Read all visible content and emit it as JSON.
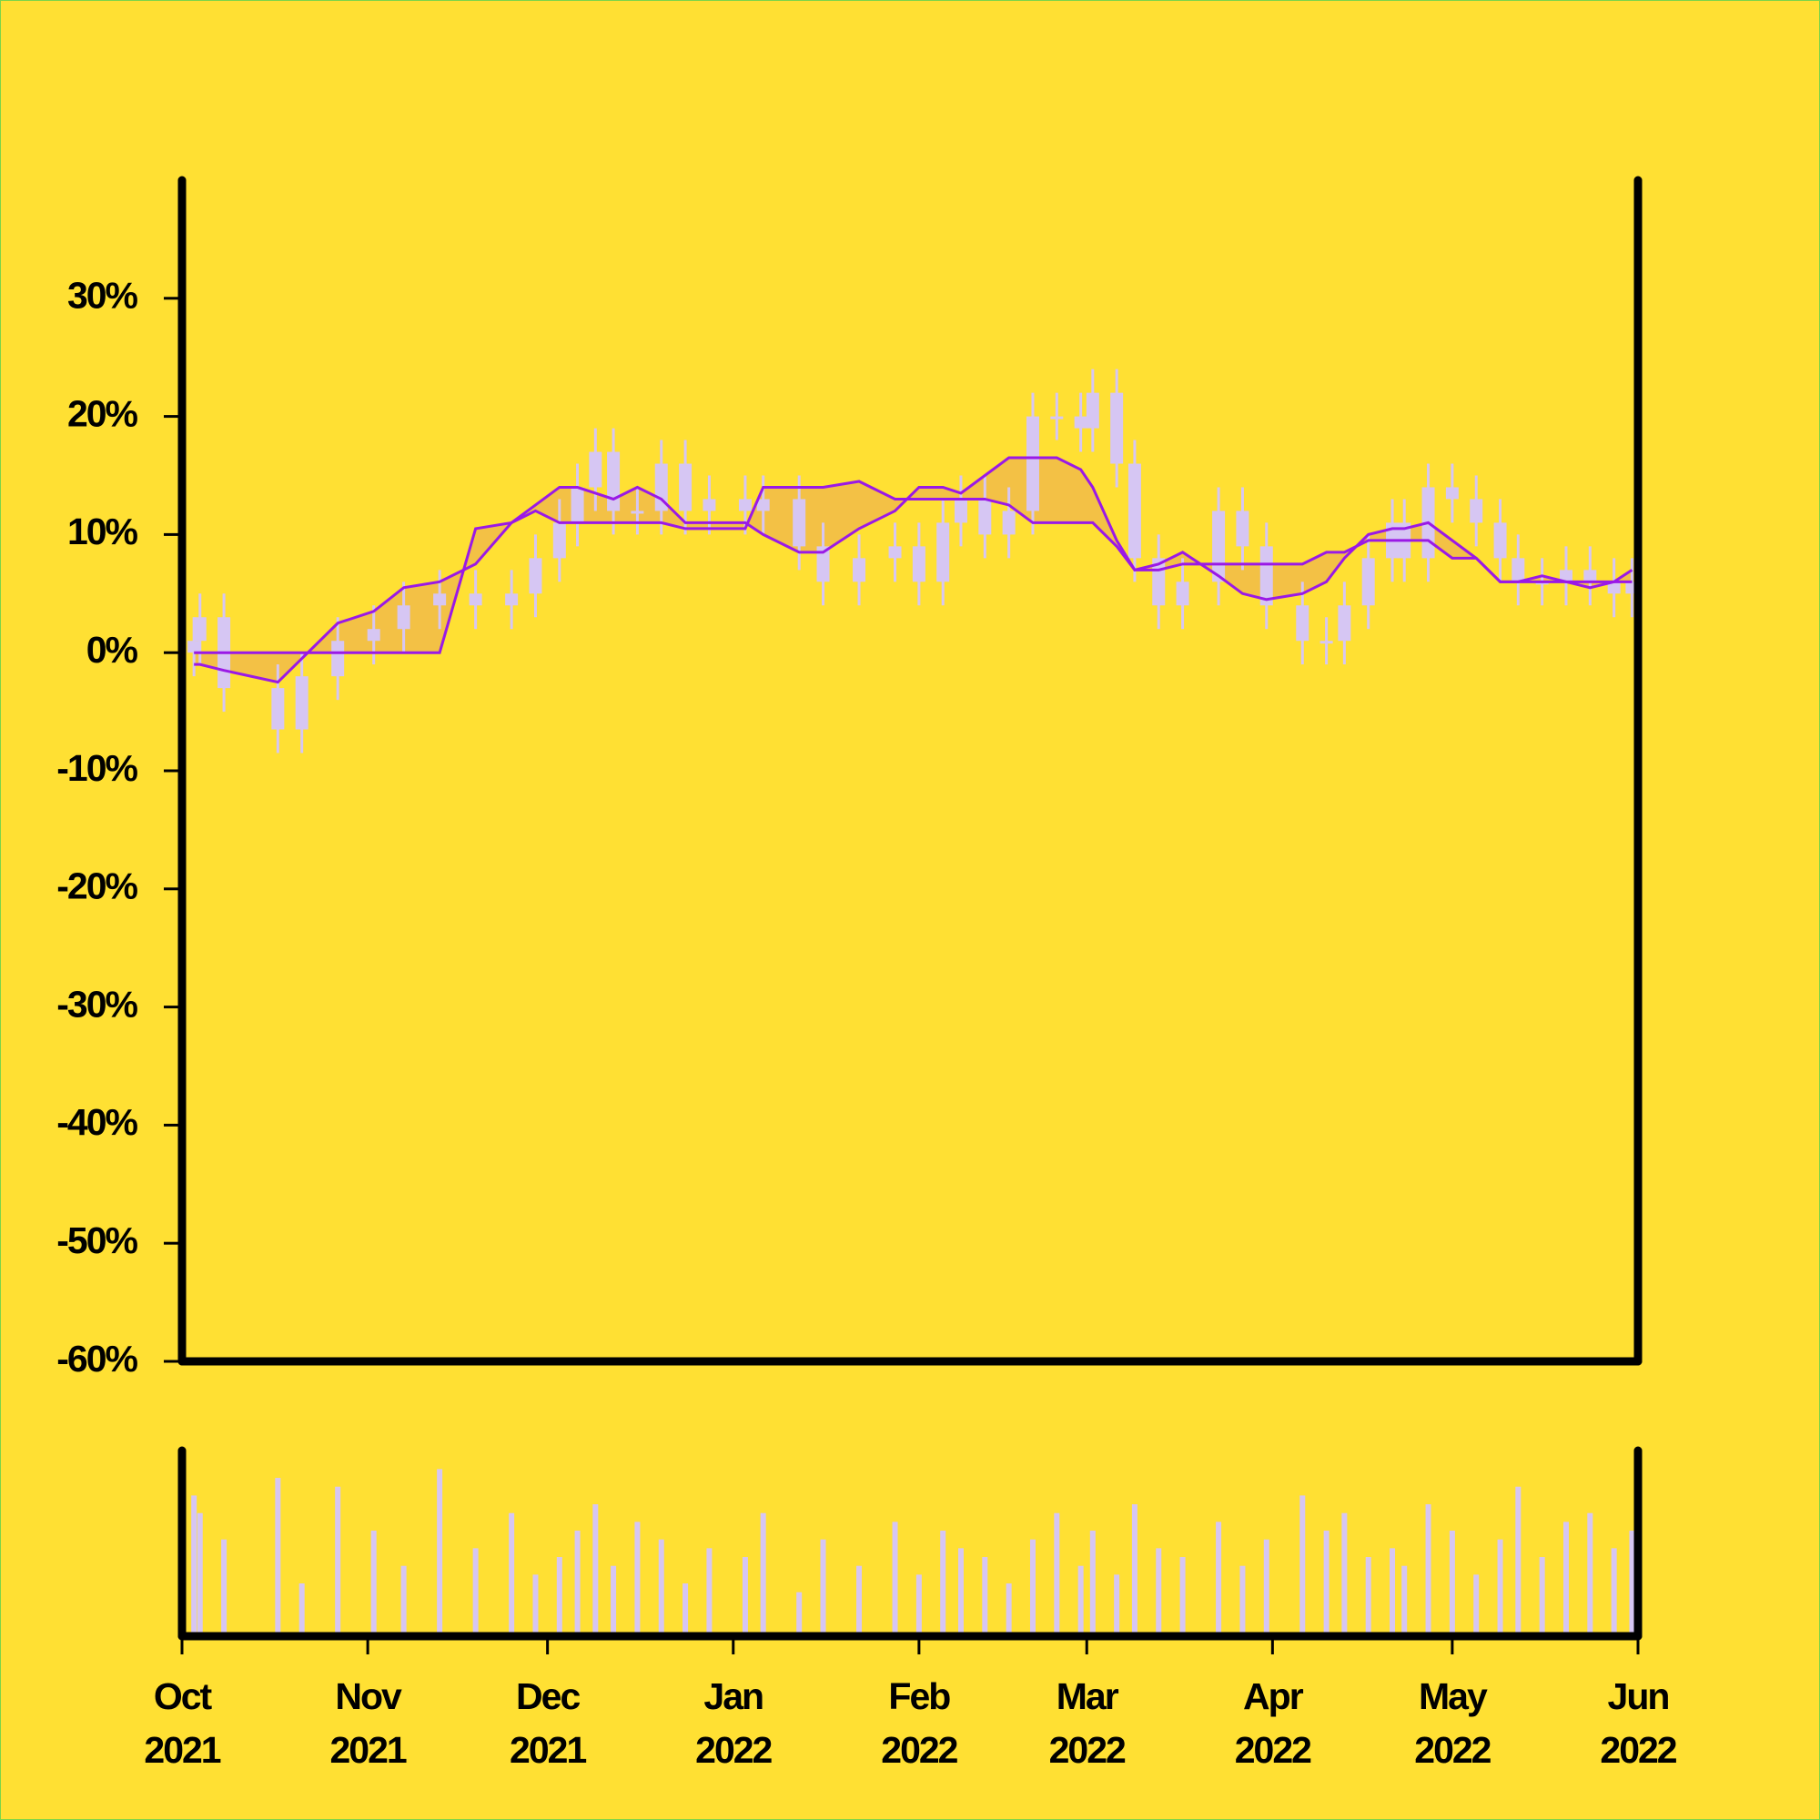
{
  "chart_data": {
    "type": "candlestick",
    "x": [
      2,
      3,
      7,
      16,
      20,
      26,
      32,
      37,
      43,
      49,
      55,
      59,
      63,
      66,
      69,
      72,
      76,
      80,
      84,
      88,
      94,
      97,
      103,
      107,
      113,
      119,
      123,
      127,
      130,
      134,
      138,
      142,
      146,
      150,
      152,
      156,
      159,
      163,
      167,
      173,
      177,
      181,
      187,
      191,
      194,
      198,
      202,
      204,
      208,
      212,
      216,
      220,
      223,
      227,
      231,
      235,
      239,
      242
    ],
    "open": [
      0,
      1,
      3,
      -3,
      -6.5,
      -2,
      1,
      2,
      4,
      5,
      4,
      5,
      8,
      11,
      14,
      17,
      12,
      12,
      16,
      12,
      13,
      12,
      13,
      9,
      6,
      8,
      9,
      6,
      11,
      13,
      10,
      12,
      20,
      20,
      19,
      22,
      16,
      8,
      4,
      6,
      12,
      9,
      4,
      1,
      1,
      4,
      8,
      11,
      8,
      14,
      13,
      11,
      8,
      6,
      6,
      7,
      6,
      5
    ],
    "high": [
      3,
      5,
      5,
      -1,
      0,
      3,
      4,
      6,
      7,
      7,
      7,
      10,
      13,
      16,
      19,
      19,
      14,
      18,
      18,
      15,
      15,
      15,
      15,
      11,
      10,
      11,
      11,
      13,
      15,
      15,
      14,
      22,
      22,
      22,
      24,
      24,
      18,
      10,
      8,
      14,
      14,
      11,
      6,
      3,
      6,
      10,
      13,
      13,
      16,
      16,
      15,
      13,
      10,
      8,
      9,
      9,
      8,
      8
    ],
    "low": [
      -2,
      -1,
      -5,
      -8.5,
      -8.5,
      -4,
      -1,
      0,
      2,
      2,
      2,
      3,
      6,
      9,
      12,
      10,
      10,
      10,
      10,
      10,
      10,
      10,
      7,
      4,
      4,
      6,
      4,
      4,
      9,
      8,
      8,
      10,
      18,
      17,
      17,
      14,
      6,
      2,
      2,
      4,
      7,
      2,
      -1,
      -1,
      -1,
      2,
      6,
      6,
      6,
      11,
      9,
      6,
      4,
      4,
      4,
      4,
      3,
      3
    ],
    "close": [
      1,
      3,
      -3,
      -6.5,
      -2,
      1,
      2,
      4,
      5,
      4,
      5,
      8,
      11,
      14,
      17,
      12,
      12,
      16,
      12,
      13,
      12,
      13,
      9,
      6,
      8,
      9,
      6,
      11,
      13,
      10,
      12,
      20,
      20,
      19,
      22,
      16,
      8,
      4,
      6,
      12,
      9,
      4,
      1,
      1,
      4,
      8,
      11,
      8,
      14,
      13,
      11,
      8,
      6,
      6,
      7,
      6,
      5,
      6
    ],
    "volume": [
      80,
      70,
      55,
      90,
      30,
      85,
      60,
      40,
      95,
      50,
      70,
      35,
      45,
      60,
      75,
      40,
      65,
      55,
      30,
      50,
      45,
      70,
      25,
      55,
      40,
      65,
      35,
      60,
      50,
      45,
      30,
      55,
      70,
      40,
      60,
      35,
      75,
      50,
      45,
      65,
      40,
      55,
      80,
      60,
      70,
      45,
      50,
      40,
      75,
      60,
      35,
      55,
      85,
      45,
      65,
      70,
      50,
      60
    ],
    "series": [
      {
        "color": "#9a19e6",
        "values": [
          -1,
          -1,
          -1.5,
          -2.5,
          -0.5,
          2.5,
          3.5,
          5.5,
          6,
          7.5,
          11,
          12.5,
          14,
          14,
          13.5,
          13,
          14,
          13,
          11,
          11,
          11,
          10,
          8.5,
          8.5,
          10.5,
          12,
          14,
          14,
          13.5,
          15,
          16.5,
          16.5,
          16.5,
          15.5,
          14,
          9.5,
          7,
          7.5,
          8.5,
          6.5,
          5,
          4.5,
          5,
          6,
          8,
          10,
          10.5,
          10.5,
          11,
          9.5,
          8,
          6,
          6,
          6,
          6,
          5.5,
          6,
          7
        ]
      },
      {
        "color": "#9a19e6",
        "values": [
          0,
          0,
          0,
          0,
          0,
          0,
          0,
          0,
          0,
          10.5,
          11,
          12,
          11,
          11,
          11,
          11,
          11,
          11,
          10.5,
          10.5,
          10.5,
          14,
          14,
          14,
          14.5,
          13,
          13,
          13,
          13,
          13,
          12.5,
          11,
          11,
          11,
          11,
          9,
          7,
          7,
          7.5,
          7.5,
          7.5,
          7.5,
          7.5,
          8.5,
          8.5,
          9.5,
          9.5,
          9.5,
          9.5,
          8,
          8,
          6,
          6,
          6.5,
          6,
          6,
          6,
          6
        ]
      }
    ],
    "candle_color": "#d6c6f3",
    "volume_color": "#d6c6f3",
    "fill_color": "#f0b94a",
    "xlim": [
      0,
      243
    ],
    "xticks": [
      {
        "value": 0,
        "label": "Oct 2021"
      },
      {
        "value": 31,
        "label": "Nov 2021"
      },
      {
        "value": 61,
        "label": "Dec 2021"
      },
      {
        "value": 92,
        "label": "Jan 2022"
      },
      {
        "value": 123,
        "label": "Feb 2022"
      },
      {
        "value": 151,
        "label": "Mar 2022"
      },
      {
        "value": 182,
        "label": "Apr 2022"
      },
      {
        "value": 212,
        "label": "May 2022"
      },
      {
        "value": 243,
        "label": "Jun 2022"
      }
    ],
    "ylim": [
      -60,
      40
    ],
    "yticks": [
      {
        "value": 30,
        "label": "30%"
      },
      {
        "value": 20,
        "label": "20%"
      },
      {
        "value": 10,
        "label": "10%"
      },
      {
        "value": 0,
        "label": "0%"
      },
      {
        "value": -10,
        "label": "-10%"
      },
      {
        "value": -20,
        "label": "-20%"
      },
      {
        "value": -30,
        "label": "-30%"
      },
      {
        "value": -40,
        "label": "-40%"
      },
      {
        "value": -50,
        "label": "-50%"
      },
      {
        "value": -60,
        "label": "-60%"
      }
    ]
  }
}
